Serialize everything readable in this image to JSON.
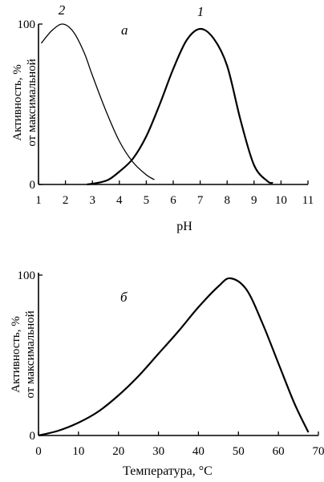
{
  "chart_data": [
    {
      "type": "line",
      "panel_label": "а",
      "xlabel": "pH",
      "ylabel": [
        "Активность, %",
        "от максимальной"
      ],
      "xlim": [
        1,
        11
      ],
      "ylim": [
        0,
        100
      ],
      "x_ticks": [
        1,
        2,
        3,
        4,
        5,
        6,
        7,
        8,
        9,
        10,
        11
      ],
      "y_ticks": [
        0,
        100
      ],
      "grid": false,
      "series": [
        {
          "name": "1",
          "x": [
            2.8,
            3.2,
            3.6,
            4.0,
            4.5,
            5.0,
            5.5,
            6.0,
            6.5,
            7.0,
            7.5,
            8.0,
            8.5,
            9.0,
            9.5,
            9.7
          ],
          "y": [
            0,
            1,
            3,
            8,
            16,
            30,
            50,
            72,
            90,
            97,
            91,
            74,
            40,
            12,
            2,
            1
          ]
        },
        {
          "name": "2",
          "x": [
            1.1,
            1.5,
            1.9,
            2.3,
            2.7,
            3.0,
            3.5,
            4.0,
            4.5,
            5.0,
            5.3
          ],
          "y": [
            88,
            96,
            100,
            95,
            82,
            68,
            46,
            27,
            14,
            6,
            3
          ]
        }
      ]
    },
    {
      "type": "line",
      "panel_label": "б",
      "xlabel": "Температура, °С",
      "ylabel": [
        "Активность, %",
        "от максимальной"
      ],
      "xlim": [
        0,
        70
      ],
      "ylim": [
        0,
        100
      ],
      "x_ticks": [
        0,
        10,
        20,
        30,
        40,
        50,
        60,
        70
      ],
      "y_ticks": [
        0,
        100
      ],
      "grid": false,
      "series": [
        {
          "x": [
            0,
            5,
            10,
            15,
            20,
            25,
            30,
            35,
            40,
            45,
            48,
            52,
            56,
            60,
            64,
            67.5
          ],
          "y": [
            0,
            3,
            8,
            15,
            25,
            37,
            51,
            65,
            80,
            93,
            98,
            91,
            70,
            45,
            20,
            2
          ]
        }
      ]
    }
  ]
}
